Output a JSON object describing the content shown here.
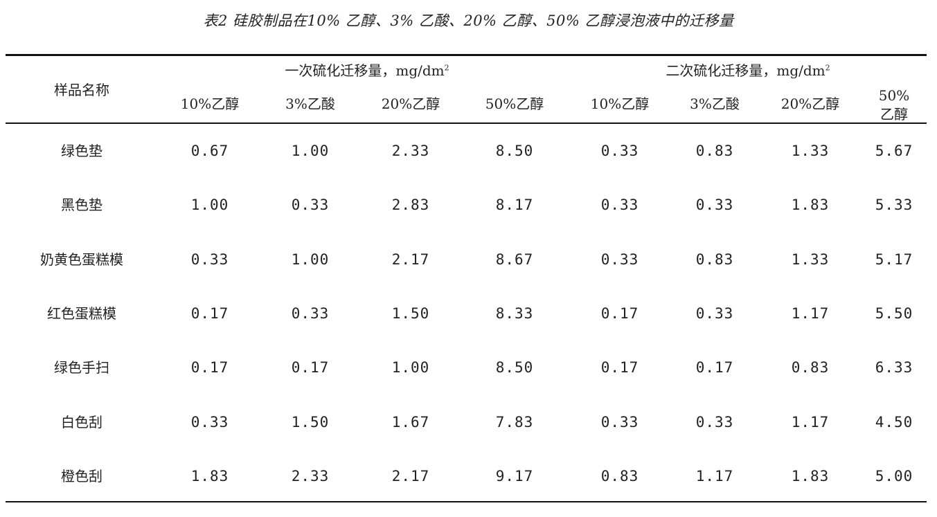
{
  "title": "表2  硅胶制品在10% 乙醇、3% 乙酸、20% 乙醇、50% 乙醇浸泡液中的迁移量",
  "header": {
    "name_col": "样品名称",
    "group1": "一次硫化迁移量，mg/dm",
    "group2": "二次硫化迁移量，mg/dm",
    "group_unit_sup": "2",
    "sub_cols": [
      "10%乙醇",
      "3%乙酸",
      "20%乙醇",
      "50%乙醇",
      "10%乙醇",
      "3%乙酸",
      "20%乙醇"
    ],
    "last_col_line1": "50%",
    "last_col_line2": "乙醇"
  },
  "rows": [
    {
      "name": "绿色垫",
      "values": [
        "0.67",
        "1.00",
        "2.33",
        "8.50",
        "0.33",
        "0.83",
        "1.33",
        "5.67"
      ]
    },
    {
      "name": "黑色垫",
      "values": [
        "1.00",
        "0.33",
        "2.83",
        "8.17",
        "0.33",
        "0.33",
        "1.83",
        "5.33"
      ]
    },
    {
      "name": "奶黄色蛋糕模",
      "values": [
        "0.33",
        "1.00",
        "2.17",
        "8.67",
        "0.33",
        "0.83",
        "1.33",
        "5.17"
      ]
    },
    {
      "name": "红色蛋糕模",
      "values": [
        "0.17",
        "0.33",
        "1.50",
        "8.33",
        "0.17",
        "0.33",
        "1.17",
        "5.50"
      ]
    },
    {
      "name": "绿色手扫",
      "values": [
        "0.17",
        "0.17",
        "1.00",
        "8.50",
        "0.17",
        "0.17",
        "0.83",
        "6.33"
      ]
    },
    {
      "name": "白色刮",
      "values": [
        "0.33",
        "1.50",
        "1.67",
        "7.83",
        "0.33",
        "0.33",
        "1.17",
        "4.50"
      ]
    },
    {
      "name": "橙色刮",
      "values": [
        "1.83",
        "2.33",
        "2.17",
        "9.17",
        "0.83",
        "1.17",
        "1.83",
        "5.00"
      ]
    }
  ]
}
